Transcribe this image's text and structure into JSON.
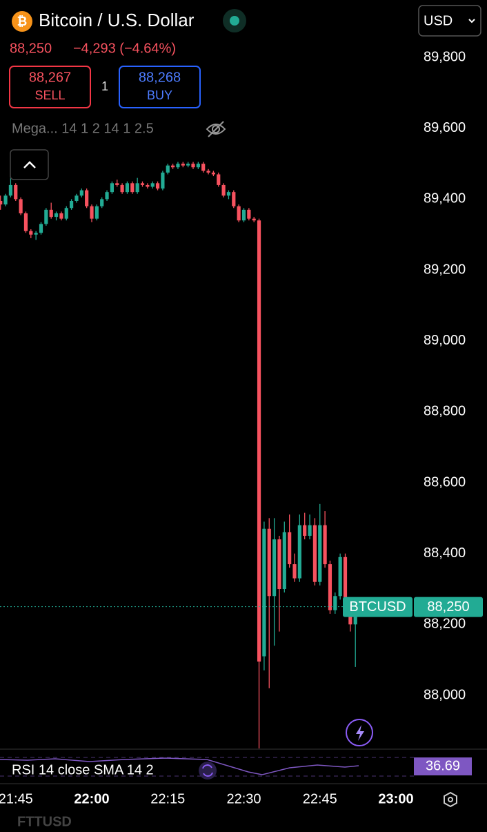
{
  "header": {
    "symbol": "Bitcoin / U.S. Dollar",
    "price": "88,250",
    "change": "−4,293 (−4.64%)",
    "currency": "USD",
    "sell_price": "88,267",
    "sell": "SELL",
    "spread": "1",
    "buy_price": "88,268",
    "buy": "BUY",
    "indicator": "Mega... 14 1 2 14 1 2.5"
  },
  "chart_data": {
    "type": "candlestick",
    "x": [
      "21:42",
      "21:43",
      "21:44",
      "21:45",
      "21:46",
      "21:47",
      "21:48",
      "21:49",
      "21:50",
      "21:51",
      "21:52",
      "21:53",
      "21:54",
      "21:55",
      "21:56",
      "21:57",
      "21:58",
      "21:59",
      "22:00",
      "22:01",
      "22:02",
      "22:03",
      "22:04",
      "22:05",
      "22:06",
      "22:07",
      "22:08",
      "22:09",
      "22:10",
      "22:11",
      "22:12",
      "22:13",
      "22:14",
      "22:15",
      "22:16",
      "22:17",
      "22:18",
      "22:19",
      "22:20",
      "22:21",
      "22:22",
      "22:23",
      "22:24",
      "22:25",
      "22:26",
      "22:27",
      "22:28",
      "22:29",
      "22:30",
      "22:31",
      "22:32",
      "22:33",
      "22:34",
      "22:35",
      "22:36",
      "22:37",
      "22:38",
      "22:39",
      "22:40",
      "22:41",
      "22:42",
      "22:43",
      "22:44",
      "22:45",
      "22:46",
      "22:47",
      "22:48",
      "22:49",
      "22:50",
      "22:51",
      "22:52"
    ],
    "open": [
      89395,
      89385,
      89410,
      89440,
      89400,
      89360,
      89310,
      89300,
      89305,
      89330,
      89370,
      89350,
      89360,
      89345,
      89375,
      89395,
      89410,
      89425,
      89380,
      89345,
      89380,
      89400,
      89420,
      89445,
      89440,
      89420,
      89445,
      89420,
      89445,
      89440,
      89435,
      89445,
      89430,
      89475,
      89495,
      89490,
      89500,
      89495,
      89500,
      89490,
      89500,
      89480,
      89475,
      89470,
      89440,
      89410,
      89420,
      89380,
      89340,
      89370,
      89345,
      89340,
      88110,
      88470,
      88280,
      88440,
      88300,
      88460,
      88370,
      88330,
      88480,
      88450,
      88480,
      88320,
      88480,
      88370,
      88240,
      88280,
      88390,
      88250,
      88200
    ],
    "high": [
      89410,
      89415,
      89460,
      89445,
      89405,
      89365,
      89315,
      89310,
      89335,
      89375,
      89390,
      89365,
      89365,
      89380,
      89400,
      89415,
      89430,
      89430,
      89385,
      89385,
      89405,
      89425,
      89450,
      89455,
      89445,
      89450,
      89450,
      89460,
      89450,
      89445,
      89450,
      89450,
      89480,
      89500,
      89500,
      89505,
      89505,
      89505,
      89505,
      89505,
      89505,
      89485,
      89480,
      89475,
      89445,
      89425,
      89425,
      89385,
      89375,
      89375,
      89350,
      89345,
      88490,
      88500,
      88500,
      88450,
      88490,
      88510,
      88400,
      88510,
      88515,
      88510,
      88500,
      88540,
      88520,
      88380,
      88290,
      88400,
      88400,
      88260,
      88250
    ],
    "low": [
      89370,
      89380,
      89405,
      89395,
      89355,
      89305,
      89290,
      89285,
      89300,
      89325,
      89345,
      89340,
      89340,
      89340,
      89370,
      89390,
      89405,
      89375,
      89335,
      89340,
      89375,
      89395,
      89415,
      89435,
      89415,
      89415,
      89415,
      89415,
      89435,
      89430,
      89430,
      89425,
      89425,
      89470,
      89485,
      89485,
      89490,
      89490,
      89485,
      89485,
      89475,
      89470,
      89465,
      89435,
      89405,
      89400,
      89375,
      89335,
      89335,
      89340,
      89335,
      87850,
      88070,
      88020,
      88140,
      88180,
      88290,
      88360,
      88320,
      88320,
      88440,
      88440,
      88310,
      88310,
      88360,
      88230,
      88230,
      88270,
      88240,
      88180,
      88080
    ],
    "close": [
      89385,
      89410,
      89440,
      89400,
      89360,
      89310,
      89300,
      89305,
      89330,
      89370,
      89350,
      89360,
      89345,
      89375,
      89395,
      89410,
      89425,
      89380,
      89345,
      89380,
      89400,
      89420,
      89445,
      89440,
      89420,
      89445,
      89420,
      89445,
      89440,
      89435,
      89445,
      89430,
      89475,
      89495,
      89490,
      89500,
      89495,
      89500,
      89490,
      89500,
      89480,
      89475,
      89470,
      89440,
      89410,
      89420,
      89380,
      89340,
      89370,
      89345,
      89340,
      88095,
      88470,
      88280,
      88440,
      88300,
      88460,
      88370,
      88330,
      88480,
      88450,
      88480,
      88320,
      88480,
      88370,
      88240,
      88280,
      88390,
      88250,
      88200,
      88250
    ],
    "up_color": "#22ab94",
    "down_color": "#f7525f",
    "ylim": [
      87848,
      89962
    ],
    "yticks": [
      {
        "value": 88000,
        "label": "88,000"
      },
      {
        "value": 88200,
        "label": "88,200"
      },
      {
        "value": 88400,
        "label": "88,400"
      },
      {
        "value": 88600,
        "label": "88,600"
      },
      {
        "value": 88800,
        "label": "88,800"
      },
      {
        "value": 89000,
        "label": "89,000"
      },
      {
        "value": 89200,
        "label": "89,200"
      },
      {
        "value": 89400,
        "label": "89,400"
      },
      {
        "value": 89600,
        "label": "89,600"
      },
      {
        "value": 89800,
        "label": "89,800"
      }
    ],
    "xticks": [
      "21:45",
      "22:00",
      "22:15",
      "22:30",
      "22:45",
      "23:00"
    ],
    "last_price": {
      "symbol": "BTCUSD",
      "value": 88250,
      "label": "88,250"
    },
    "rsi": {
      "label": "RSI 14 close SMA 14 2",
      "value": "36.69"
    }
  },
  "footer": {
    "symbol": "FTTUSD"
  }
}
